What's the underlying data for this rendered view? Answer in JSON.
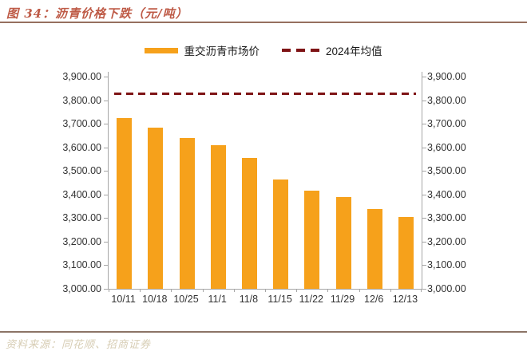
{
  "header": {
    "title": "图 34：沥青价格下跌（元/吨）"
  },
  "legend": {
    "bar_label": "重交沥青市场价",
    "line_label": "2024年均值"
  },
  "footer": {
    "source": "资料来源：同花顺、招商证券"
  },
  "colors": {
    "bar": "#F6A11B",
    "mean": "#7E1315",
    "title": "#BE5A46",
    "rule": "#96705F",
    "rule2": "#8C7466",
    "source": "#D7CDB4",
    "axis": "#A6A6A6"
  },
  "chart_data": {
    "type": "bar",
    "title": "沥青价格下跌（元/吨）",
    "categories": [
      "10/11",
      "10/18",
      "10/25",
      "11/1",
      "11/8",
      "11/15",
      "11/22",
      "11/29",
      "12/6",
      "12/13"
    ],
    "series": [
      {
        "name": "重交沥青市场价",
        "type": "bar",
        "values": [
          3725,
          3685,
          3640,
          3610,
          3555,
          3465,
          3415,
          3390,
          3340,
          3305
        ]
      },
      {
        "name": "2024年均值",
        "type": "line",
        "value": 3830
      }
    ],
    "xlabel": "",
    "ylabel": "",
    "ylim": [
      3000,
      3900
    ],
    "ytick_step": 100,
    "y_tick_format": "#,##0.00",
    "y_axis": "both",
    "grid": false,
    "legend_position": "top-center"
  }
}
